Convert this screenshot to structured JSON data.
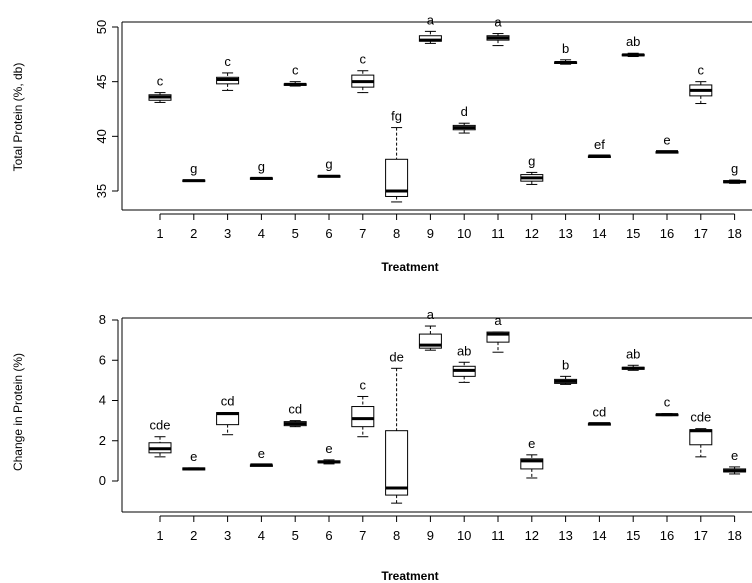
{
  "chart_data": [
    {
      "type": "box",
      "xlabel": "Treatment",
      "ylabel": "Total Protein (%, db)",
      "ylim": [
        34,
        51
      ],
      "yticks": [
        35,
        40,
        45,
        50
      ],
      "categories": [
        "1",
        "2",
        "3",
        "4",
        "5",
        "6",
        "7",
        "8",
        "9",
        "10",
        "11",
        "12",
        "13",
        "14",
        "15",
        "16",
        "17",
        "18"
      ],
      "boxes": [
        {
          "min": 43.1,
          "q1": 43.3,
          "median": 43.6,
          "q3": 43.8,
          "max": 44.0,
          "label": "c"
        },
        {
          "min": 35.9,
          "q1": 35.9,
          "median": 35.95,
          "q3": 36.0,
          "max": 36.0,
          "label": "g"
        },
        {
          "min": 44.2,
          "q1": 44.8,
          "median": 45.2,
          "q3": 45.4,
          "max": 45.8,
          "label": "c"
        },
        {
          "min": 36.1,
          "q1": 36.1,
          "median": 36.15,
          "q3": 36.2,
          "max": 36.2,
          "label": "g"
        },
        {
          "min": 44.6,
          "q1": 44.7,
          "median": 44.75,
          "q3": 44.8,
          "max": 45.0,
          "label": "c"
        },
        {
          "min": 36.3,
          "q1": 36.3,
          "median": 36.35,
          "q3": 36.4,
          "max": 36.4,
          "label": "g"
        },
        {
          "min": 44.0,
          "q1": 44.5,
          "median": 45.0,
          "q3": 45.6,
          "max": 46.0,
          "label": "c"
        },
        {
          "min": 34.0,
          "q1": 34.5,
          "median": 35.0,
          "q3": 37.9,
          "max": 40.8,
          "label": "fg"
        },
        {
          "min": 48.5,
          "q1": 48.7,
          "median": 48.8,
          "q3": 49.2,
          "max": 49.6,
          "label": "a"
        },
        {
          "min": 40.3,
          "q1": 40.6,
          "median": 40.8,
          "q3": 41.0,
          "max": 41.2,
          "label": "d"
        },
        {
          "min": 48.3,
          "q1": 48.8,
          "median": 49.0,
          "q3": 49.2,
          "max": 49.4,
          "label": "a"
        },
        {
          "min": 35.6,
          "q1": 35.9,
          "median": 36.2,
          "q3": 36.5,
          "max": 36.7,
          "label": "g"
        },
        {
          "min": 46.6,
          "q1": 46.7,
          "median": 46.75,
          "q3": 46.8,
          "max": 47.0,
          "label": "b"
        },
        {
          "min": 38.2,
          "q1": 38.2,
          "median": 38.2,
          "q3": 38.2,
          "max": 38.2,
          "label": "ef"
        },
        {
          "min": 47.3,
          "q1": 47.4,
          "median": 47.45,
          "q3": 47.5,
          "max": 47.6,
          "label": "ab"
        },
        {
          "min": 38.6,
          "q1": 38.6,
          "median": 38.6,
          "q3": 38.6,
          "max": 38.6,
          "label": "e"
        },
        {
          "min": 43.0,
          "q1": 43.7,
          "median": 44.2,
          "q3": 44.7,
          "max": 45.0,
          "label": "c"
        },
        {
          "min": 35.7,
          "q1": 35.75,
          "median": 35.85,
          "q3": 35.95,
          "max": 36.0,
          "label": "g"
        }
      ]
    },
    {
      "type": "box",
      "xlabel": "Treatment",
      "ylabel": "Change in Protein (%)",
      "ylim": [
        -1.4,
        8.4
      ],
      "yticks": [
        0,
        2,
        4,
        6,
        8
      ],
      "categories": [
        "1",
        "2",
        "3",
        "4",
        "5",
        "6",
        "7",
        "8",
        "9",
        "10",
        "11",
        "12",
        "13",
        "14",
        "15",
        "16",
        "17",
        "18"
      ],
      "boxes": [
        {
          "min": 1.2,
          "q1": 1.4,
          "median": 1.6,
          "q3": 1.9,
          "max": 2.2,
          "label": "cde"
        },
        {
          "min": 0.55,
          "q1": 0.55,
          "median": 0.6,
          "q3": 0.65,
          "max": 0.65,
          "label": "e"
        },
        {
          "min": 2.3,
          "q1": 2.8,
          "median": 3.35,
          "q3": 3.4,
          "max": 3.4,
          "label": "cd"
        },
        {
          "min": 0.8,
          "q1": 0.8,
          "median": 0.8,
          "q3": 0.8,
          "max": 0.8,
          "label": "e"
        },
        {
          "min": 2.7,
          "q1": 2.75,
          "median": 2.85,
          "q3": 2.95,
          "max": 3.0,
          "label": "cd"
        },
        {
          "min": 0.85,
          "q1": 0.9,
          "median": 0.95,
          "q3": 1.0,
          "max": 1.05,
          "label": "e"
        },
        {
          "min": 2.2,
          "q1": 2.7,
          "median": 3.1,
          "q3": 3.7,
          "max": 4.2,
          "label": "c"
        },
        {
          "min": -1.1,
          "q1": -0.7,
          "median": -0.35,
          "q3": 2.5,
          "max": 5.6,
          "label": "de"
        },
        {
          "min": 6.5,
          "q1": 6.6,
          "median": 6.75,
          "q3": 7.3,
          "max": 7.7,
          "label": "a"
        },
        {
          "min": 4.9,
          "q1": 5.2,
          "median": 5.5,
          "q3": 5.7,
          "max": 5.9,
          "label": "ab"
        },
        {
          "min": 6.4,
          "q1": 6.9,
          "median": 7.3,
          "q3": 7.4,
          "max": 7.4,
          "label": "a"
        },
        {
          "min": 0.15,
          "q1": 0.6,
          "median": 1.0,
          "q3": 1.1,
          "max": 1.3,
          "label": "e"
        },
        {
          "min": 4.8,
          "q1": 4.85,
          "median": 4.95,
          "q3": 5.05,
          "max": 5.2,
          "label": "b"
        },
        {
          "min": 2.85,
          "q1": 2.85,
          "median": 2.85,
          "q3": 2.85,
          "max": 2.85,
          "label": "cd"
        },
        {
          "min": 5.5,
          "q1": 5.55,
          "median": 5.6,
          "q3": 5.65,
          "max": 5.75,
          "label": "ab"
        },
        {
          "min": 3.25,
          "q1": 3.28,
          "median": 3.3,
          "q3": 3.32,
          "max": 3.35,
          "label": "c"
        },
        {
          "min": 1.2,
          "q1": 1.8,
          "median": 2.5,
          "q3": 2.55,
          "max": 2.6,
          "label": "cde"
        },
        {
          "min": 0.35,
          "q1": 0.45,
          "median": 0.5,
          "q3": 0.6,
          "max": 0.7,
          "label": "e"
        }
      ]
    }
  ]
}
